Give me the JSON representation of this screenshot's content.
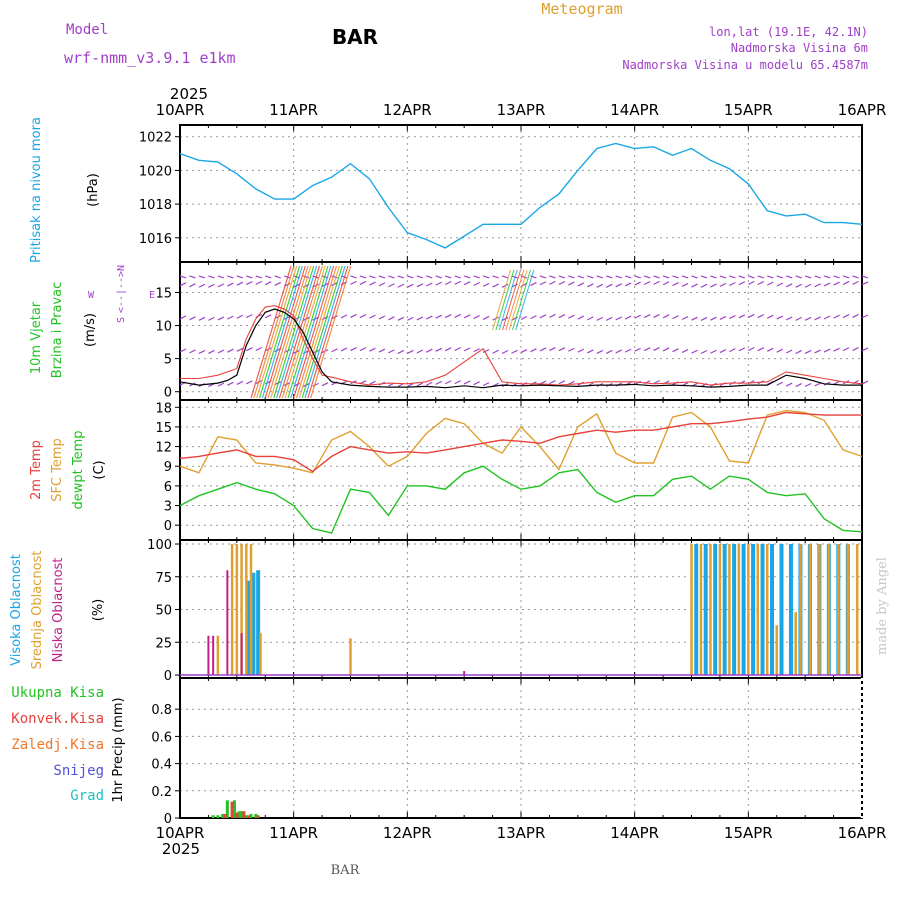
{
  "header": {
    "model_label": "Model",
    "model_name": "wrf-nmm_v3.9.1 e1km",
    "station": "BAR",
    "title": "Meteogram",
    "coords": "lon,lat (19.1E, 42.1N)",
    "elevation": "Nadmorska Visina 6m",
    "model_elevation": "Nadmorska Visina u modelu 65.4587m",
    "footer": "BAR",
    "watermark": "made by Angel"
  },
  "colors": {
    "pressure": "#1aa6e6",
    "temp2m": "#e8413c",
    "sfc_temp": "#e0a030",
    "dewpoint": "#22c322",
    "high_cloud": "#1aa6e6",
    "mid_cloud": "#e0a030",
    "low_cloud": "#c0208a",
    "purple": "#a040c8",
    "wind_speed": "#000000",
    "gust": "#e8413c"
  },
  "time_axis": {
    "year_top": "2025",
    "year_bottom": "2025",
    "labels": [
      "10APR",
      "11APR",
      "12APR",
      "13APR",
      "14APR",
      "15APR",
      "16APR"
    ]
  },
  "panels": {
    "pressure": {
      "label": "Pritisak na nivou mora",
      "unit": "(hPa)"
    },
    "wind": {
      "label1": "10m Vjetar",
      "label2": "Brzina i Pravac",
      "unit": "(m/s)",
      "compass": {
        "n": "N",
        "s": "S",
        "e": "E",
        "w": "W",
        "arrows": "<--|-->"
      }
    },
    "temp": {
      "label1": "2m Temp",
      "label2": "SFC Temp",
      "label3": "dewpt Temp",
      "unit": "(C)"
    },
    "cloud": {
      "label1": "Visoka Oblacnost",
      "label2": "Srednja Oblacnost",
      "label3": "Niska Oblacnost",
      "unit": "(%)"
    },
    "precip": {
      "label1": "Ukupna Kisa",
      "label2": "Konvek.Kisa",
      "label3": "Zaledj.Kisa",
      "label4": "Snijeg",
      "label5": "Grad",
      "unit": "1hr Precip (mm)"
    }
  },
  "chart_data": [
    {
      "type": "line",
      "name": "pressure",
      "ylim": [
        1014.8,
        1022.4
      ],
      "yticks": [
        "1016",
        "1018",
        "1020",
        "1022"
      ],
      "x": [
        0,
        4,
        8,
        12,
        16,
        20,
        24,
        28,
        32,
        36,
        40,
        44,
        48,
        52,
        56,
        60,
        64,
        68,
        72,
        76,
        80,
        84,
        88,
        92,
        96,
        100,
        104,
        108,
        112,
        116,
        120,
        124,
        128,
        132,
        136,
        140,
        144
      ],
      "series": [
        {
          "values": [
            1021.0,
            1020.6,
            1020.5,
            1019.8,
            1018.9,
            1018.3,
            1018.3,
            1019.1,
            1019.6,
            1020.4,
            1019.5,
            1017.8,
            1016.3,
            1015.9,
            1015.4,
            1016.1,
            1016.8,
            1016.8,
            1016.8,
            1017.8,
            1018.6,
            1020.0,
            1021.3,
            1021.6,
            1021.3,
            1021.4,
            1020.9,
            1021.3,
            1020.6,
            1020.1,
            1019.2,
            1017.6,
            1017.3,
            1017.4,
            1016.9,
            1016.9,
            1016.8
          ]
        }
      ]
    },
    {
      "type": "line",
      "name": "wind",
      "ylim": [
        -0.8,
        19
      ],
      "yticks": [
        "0",
        "5",
        "10",
        "15"
      ],
      "x": [
        0,
        4,
        8,
        10,
        12,
        14,
        16,
        18,
        20,
        22,
        24,
        26,
        28,
        30,
        32,
        36,
        40,
        44,
        48,
        52,
        56,
        60,
        64,
        68,
        72,
        76,
        80,
        84,
        88,
        92,
        96,
        100,
        104,
        108,
        112,
        116,
        120,
        124,
        128,
        132,
        136,
        140,
        144
      ],
      "series": [
        {
          "name": "speed",
          "values": [
            1.5,
            1.0,
            1.3,
            1.7,
            2.5,
            7,
            10,
            12,
            12.5,
            12,
            11,
            9,
            6,
            3,
            1.5,
            1.0,
            0.8,
            0.7,
            0.7,
            0.8,
            0.6,
            0.9,
            0.6,
            1.0,
            0.9,
            1.0,
            0.9,
            0.8,
            1.0,
            1.0,
            1.1,
            0.9,
            1.0,
            0.9,
            0.7,
            0.8,
            1.0,
            1.0,
            2.5,
            2.0,
            1.2,
            1.0,
            1.0
          ]
        },
        {
          "name": "gust",
          "values": [
            2.0,
            2.0,
            2.5,
            3.0,
            3.5,
            8,
            11,
            12.8,
            13,
            12.5,
            11.5,
            8,
            5,
            2.5,
            2.2,
            1.5,
            1.0,
            1.3,
            1.2,
            1.5,
            2.5,
            4.5,
            6.5,
            1.5,
            1.2,
            1.2,
            1.0,
            1.2,
            1.5,
            1.5,
            1.5,
            1.2,
            1.3,
            1.5,
            1.0,
            1.3,
            1.3,
            1.5,
            3.0,
            2.5,
            2.0,
            1.5,
            1.2
          ]
        }
      ]
    },
    {
      "type": "line",
      "name": "temperature",
      "ylim": [
        -1.8,
        18.5
      ],
      "yticks": [
        "0",
        "3",
        "6",
        "9",
        "12",
        "15",
        "18"
      ],
      "x": [
        0,
        4,
        8,
        12,
        16,
        20,
        24,
        28,
        32,
        36,
        40,
        44,
        48,
        52,
        56,
        60,
        64,
        68,
        72,
        76,
        80,
        84,
        88,
        92,
        96,
        100,
        104,
        108,
        112,
        116,
        120,
        124,
        128,
        132,
        136,
        140,
        144
      ],
      "series": [
        {
          "name": "2m Temp",
          "values": [
            10.2,
            10.5,
            11.0,
            11.5,
            10.5,
            10.5,
            10.0,
            8.2,
            10.5,
            12.0,
            11.5,
            11.0,
            11.2,
            11.0,
            11.5,
            12.0,
            12.5,
            13.0,
            12.8,
            12.5,
            13.5,
            14.0,
            14.5,
            14.2,
            14.5,
            14.5,
            15.0,
            15.5,
            15.5,
            15.8,
            16.2,
            16.5,
            17.2,
            17.0,
            16.8,
            16.8,
            16.8
          ]
        },
        {
          "name": "SFC Temp",
          "values": [
            9.0,
            8.0,
            13.5,
            13.0,
            9.5,
            9.2,
            8.7,
            8.0,
            13.0,
            14.3,
            12.0,
            9.0,
            10.5,
            14.0,
            16.3,
            15.5,
            12.5,
            11.0,
            15.0,
            12.0,
            8.5,
            15.0,
            17.0,
            11.0,
            9.5,
            9.5,
            16.5,
            17.2,
            15.0,
            9.8,
            9.5,
            16.8,
            17.5,
            17.2,
            16.0,
            11.5,
            10.5
          ]
        },
        {
          "name": "dewpt Temp",
          "values": [
            3.0,
            4.5,
            5.5,
            6.5,
            5.5,
            4.8,
            3.0,
            -0.5,
            -1.2,
            5.5,
            5.0,
            1.5,
            6.0,
            6.0,
            5.5,
            8.0,
            9.0,
            7.0,
            5.5,
            6.0,
            8.0,
            8.5,
            5.0,
            3.5,
            4.5,
            4.5,
            7.0,
            7.5,
            5.5,
            7.5,
            7.0,
            5.0,
            4.5,
            4.8,
            1.0,
            -0.8,
            -1.0
          ]
        }
      ]
    },
    {
      "type": "bar",
      "name": "cloud",
      "ylim": [
        0,
        100
      ],
      "yticks": [
        "0",
        "25",
        "50",
        "75",
        "100"
      ],
      "series": [
        {
          "name": "Visoka Oblacnost",
          "bars": [
            [
              14.5,
              72
            ],
            [
              15.5,
              78
            ],
            [
              16.5,
              80
            ],
            [
              109,
              100
            ],
            [
              111,
              100
            ],
            [
              113,
              100
            ],
            [
              115,
              100
            ],
            [
              117,
              100
            ],
            [
              119,
              100
            ],
            [
              121,
              100
            ],
            [
              123,
              100
            ],
            [
              125,
              100
            ],
            [
              127,
              100
            ],
            [
              129,
              100
            ],
            [
              131,
              100
            ],
            [
              133,
              100
            ],
            [
              135,
              100
            ],
            [
              137,
              100
            ],
            [
              139,
              100
            ],
            [
              141,
              100
            ]
          ]
        },
        {
          "name": "Srednja Oblacnost",
          "bars": [
            [
              8,
              30
            ],
            [
              11,
              100
            ],
            [
              12,
              100
            ],
            [
              13,
              100
            ],
            [
              14,
              100
            ],
            [
              15,
              100
            ],
            [
              17,
              32
            ],
            [
              36,
              28
            ],
            [
              108,
              100
            ],
            [
              110,
              100
            ],
            [
              112,
              100
            ],
            [
              114,
              100
            ],
            [
              116,
              100
            ],
            [
              118,
              100
            ],
            [
              120,
              100
            ],
            [
              122,
              100
            ],
            [
              124,
              100
            ],
            [
              126,
              38
            ],
            [
              130,
              48
            ],
            [
              131,
              100
            ],
            [
              133,
              100
            ],
            [
              135,
              100
            ],
            [
              137,
              100
            ],
            [
              139,
              100
            ],
            [
              141,
              100
            ],
            [
              143,
              100
            ]
          ]
        },
        {
          "name": "Niska Oblacnost",
          "bars": [
            [
              6,
              30
            ],
            [
              7,
              30
            ],
            [
              10,
              80
            ],
            [
              13,
              32
            ],
            [
              60,
              3
            ]
          ]
        }
      ]
    },
    {
      "type": "bar",
      "name": "precipitation",
      "ylim": [
        0,
        1.0
      ],
      "yticks": [
        "0",
        "0.2",
        "0.4",
        "0.6",
        "0.8"
      ],
      "series": [
        {
          "name": "Ukupna Kisa",
          "bars": [
            [
              7,
              0.02
            ],
            [
              8,
              0.02
            ],
            [
              9,
              0.03
            ],
            [
              10,
              0.13
            ],
            [
              11.5,
              0.13
            ],
            [
              12.5,
              0.05
            ],
            [
              13,
              0.05
            ],
            [
              14,
              0.02
            ],
            [
              15,
              0.03
            ],
            [
              16,
              0.03
            ]
          ]
        },
        {
          "name": "Konvek.Kisa",
          "bars": [
            [
              9.5,
              0.03
            ],
            [
              11,
              0.12
            ],
            [
              12,
              0.04
            ],
            [
              13.5,
              0.05
            ],
            [
              14.5,
              0.02
            ],
            [
              16.5,
              0.02
            ]
          ]
        }
      ]
    }
  ]
}
